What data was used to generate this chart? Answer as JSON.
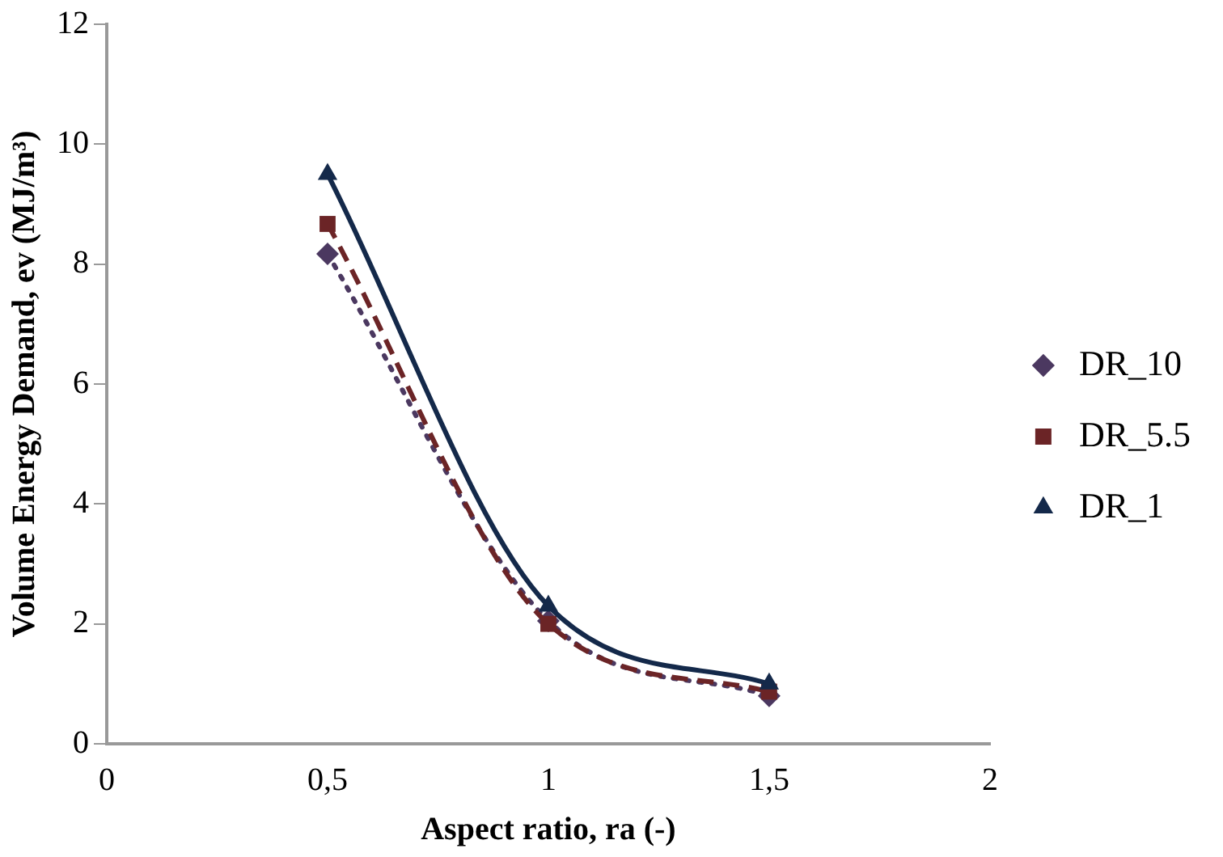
{
  "chart_data": {
    "type": "line",
    "xlabel": "Aspect ratio, ra (-)",
    "ylabel": "Volume Energy Demand, ev (MJ/m³)",
    "x": [
      0.5,
      1,
      1.5
    ],
    "series": [
      {
        "name": "DR_10",
        "color": "#4b3860",
        "values": [
          8.17,
          2.05,
          0.8
        ],
        "marker": "diamond",
        "line_style": "dotted"
      },
      {
        "name": "DR_5.5",
        "color": "#6b2426",
        "values": [
          8.67,
          2.0,
          0.87
        ],
        "marker": "square",
        "line_style": "dashed"
      },
      {
        "name": "DR_1",
        "color": "#14294a",
        "values": [
          9.5,
          2.3,
          1.0
        ],
        "marker": "triangle",
        "line_style": "solid"
      }
    ],
    "xlim": [
      0,
      2
    ],
    "xticks": [
      0,
      {
        "value": 0.5,
        "label": "0,5"
      },
      1,
      {
        "value": 1.5,
        "label": "1,5"
      },
      2
    ],
    "ylim": [
      0,
      12
    ],
    "yticks": [
      0,
      2,
      4,
      6,
      8,
      10,
      12
    ],
    "grid": false,
    "legend": "right"
  }
}
